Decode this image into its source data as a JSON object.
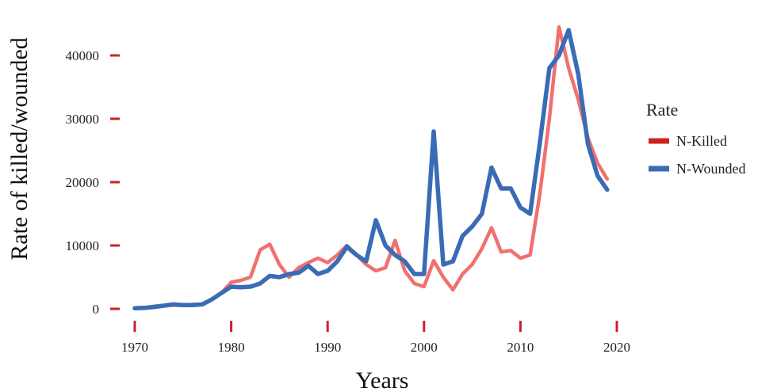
{
  "chart_data": {
    "type": "line",
    "title": "",
    "xlabel": "Years",
    "ylabel": "Rate of killed/wounded",
    "xlim": [
      1970,
      2020
    ],
    "ylim": [
      0,
      45000
    ],
    "xticks": [
      1970,
      1980,
      1990,
      2000,
      2010,
      2020
    ],
    "yticks": [
      0,
      10000,
      20000,
      30000,
      40000
    ],
    "tick_color": "#cc2222",
    "grid": false,
    "legend": {
      "title": "Rate",
      "position": "right"
    },
    "x": [
      1970,
      1971,
      1972,
      1973,
      1974,
      1975,
      1976,
      1977,
      1978,
      1979,
      1980,
      1981,
      1982,
      1983,
      1984,
      1985,
      1986,
      1987,
      1988,
      1989,
      1990,
      1991,
      1992,
      1993,
      1994,
      1995,
      1996,
      1997,
      1998,
      1999,
      2000,
      2001,
      2002,
      2003,
      2004,
      2005,
      2006,
      2007,
      2008,
      2009,
      2010,
      2011,
      2012,
      2013,
      2014,
      2015,
      2016,
      2017,
      2018,
      2019
    ],
    "series": [
      {
        "name": "N-Killed",
        "color": "#f07070",
        "values": [
          100,
          200,
          400,
          500,
          600,
          550,
          700,
          700,
          1500,
          2500,
          4200,
          4500,
          5000,
          9300,
          10200,
          7000,
          5000,
          6500,
          7300,
          8000,
          7300,
          8500,
          10000,
          8500,
          7000,
          6000,
          6500,
          10800,
          6000,
          4000,
          3500,
          7600,
          5000,
          3000,
          5500,
          7000,
          9500,
          12800,
          9000,
          9200,
          8000,
          8500,
          18000,
          30000,
          44500,
          38000,
          33000,
          27000,
          23000,
          20500
        ]
      },
      {
        "name": "N-Wounded",
        "color": "#3a6cb5",
        "values": [
          100,
          150,
          300,
          500,
          700,
          600,
          600,
          700,
          1500,
          2500,
          3500,
          3400,
          3500,
          4000,
          5200,
          5000,
          5500,
          5700,
          6800,
          5500,
          6000,
          7500,
          9800,
          8500,
          7500,
          14000,
          10000,
          8500,
          7500,
          5500,
          5500,
          28000,
          7000,
          7500,
          11500,
          13000,
          15000,
          22300,
          19000,
          19000,
          16000,
          15000,
          26000,
          38000,
          40000,
          44000,
          37000,
          26000,
          21000,
          18800
        ]
      }
    ]
  }
}
